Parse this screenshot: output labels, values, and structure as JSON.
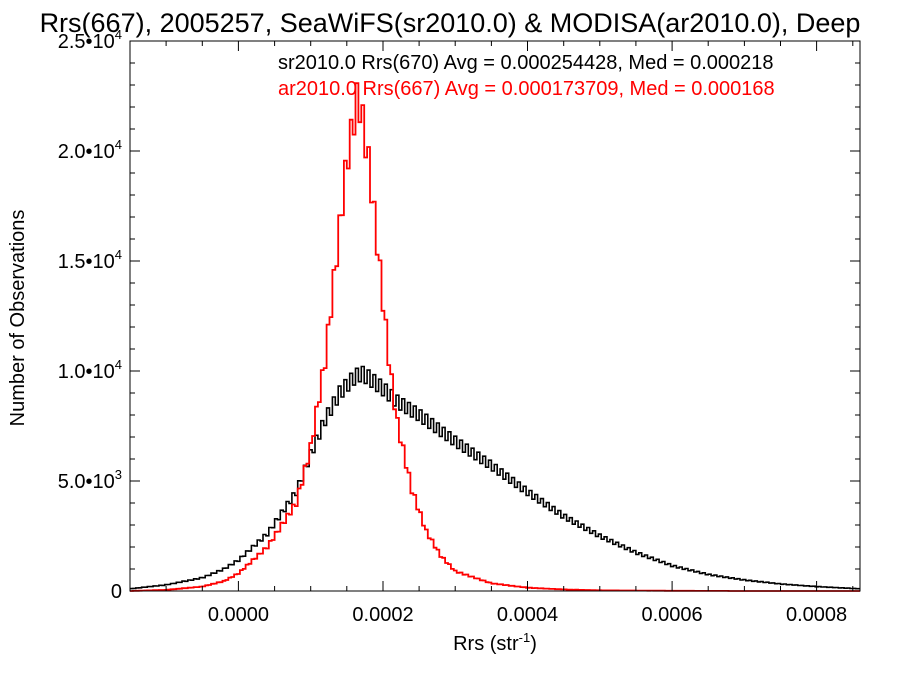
{
  "chart_data": {
    "type": "line",
    "title": "Rrs(667), 2005257, SeaWiFS(sr2010.0) & MODISA(ar2010.0), Deep",
    "xlabel": "Rrs (str",
    "xlabel_sup": "-1",
    "xlabel_end": ")",
    "ylabel": "Number of Observations",
    "xlim": [
      -0.00015,
      0.00086
    ],
    "ylim": [
      0,
      25000
    ],
    "x_ticks": [
      {
        "value": 0.0,
        "label": "0.0000"
      },
      {
        "value": 0.0002,
        "label": "0.0002"
      },
      {
        "value": 0.0004,
        "label": "0.0004"
      },
      {
        "value": 0.0006,
        "label": "0.0006"
      },
      {
        "value": 0.0008,
        "label": "0.0008"
      }
    ],
    "y_ticks": [
      {
        "value": 0,
        "mant": "0",
        "exp": ""
      },
      {
        "value": 5000,
        "mant": "5.0•10",
        "exp": "3"
      },
      {
        "value": 10000,
        "mant": "1.0•10",
        "exp": "4"
      },
      {
        "value": 15000,
        "mant": "1.5•10",
        "exp": "4"
      },
      {
        "value": 20000,
        "mant": "2.0•10",
        "exp": "4"
      },
      {
        "value": 25000,
        "mant": "2.5•10",
        "exp": "4"
      }
    ],
    "annotations": [
      {
        "text": "sr2010.0 Rrs(670) Avg = 0.000254428, Med = 0.000218",
        "color": "#000000"
      },
      {
        "text": "ar2010.0 Rrs(667) Avg = 0.000173709, Med = 0.000168",
        "color": "#ff0000"
      }
    ],
    "series": [
      {
        "name": "sr2010.0 Rrs(670)",
        "color": "#000000",
        "style": "step",
        "x": [
          -0.00015,
          -0.0001,
          -5e-05,
          -2e-05,
          0.0,
          4e-05,
          8e-05,
          0.0001,
          0.00012,
          0.00014,
          0.00016,
          0.00017,
          0.00018,
          0.0002,
          0.00022,
          0.00025,
          0.0003,
          0.00035,
          0.0004,
          0.00045,
          0.0005,
          0.00055,
          0.0006,
          0.00065,
          0.0007,
          0.00075,
          0.0008,
          0.00086
        ],
        "y": [
          100,
          280,
          600,
          1000,
          1400,
          2600,
          4500,
          6200,
          7800,
          9000,
          9700,
          9900,
          9700,
          9200,
          8600,
          8000,
          6800,
          5700,
          4500,
          3400,
          2500,
          1750,
          1150,
          750,
          500,
          320,
          200,
          100
        ]
      },
      {
        "name": "ar2010.0 Rrs(667)",
        "color": "#ff0000",
        "style": "step",
        "x": [
          -0.00015,
          -0.0001,
          -5e-05,
          -2e-05,
          0.0,
          4e-05,
          8e-05,
          0.0001,
          0.00012,
          0.00013,
          0.00014,
          0.00015,
          0.00016,
          0.000165,
          0.00017,
          0.00018,
          0.00019,
          0.0002,
          0.00021,
          0.00022,
          0.00024,
          0.00026,
          0.00028,
          0.0003,
          0.00035,
          0.0004,
          0.00045,
          0.0005,
          0.0006,
          0.0007,
          0.0008,
          0.00086
        ],
        "y": [
          0,
          50,
          200,
          450,
          800,
          2000,
          4000,
          6500,
          10500,
          13500,
          16500,
          19500,
          21500,
          22500,
          21800,
          19500,
          16500,
          13200,
          10000,
          7600,
          4600,
          2700,
          1600,
          900,
          350,
          150,
          70,
          30,
          10,
          0,
          0,
          0
        ]
      }
    ]
  }
}
